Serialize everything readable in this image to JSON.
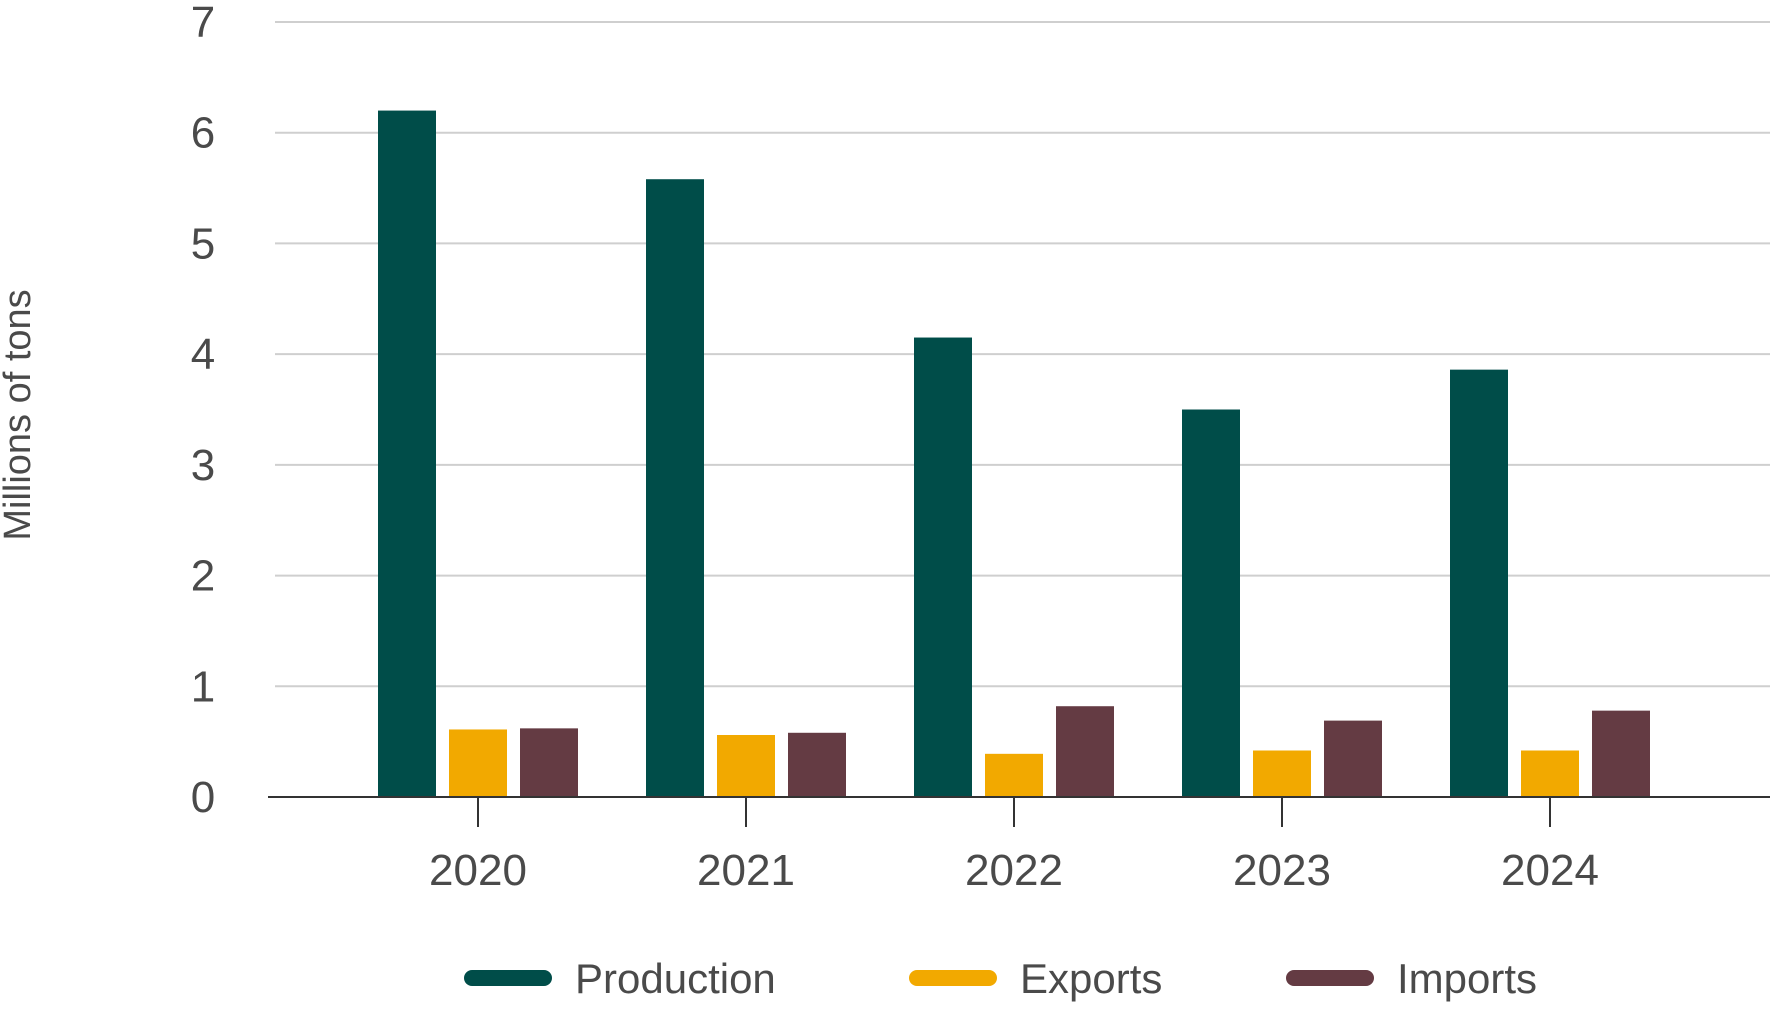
{
  "chart_data": {
    "type": "bar",
    "categories": [
      "2020",
      "2021",
      "2022",
      "2023",
      "2024"
    ],
    "series": [
      {
        "name": "Production",
        "values": [
          6.2,
          5.58,
          4.15,
          3.5,
          3.86
        ],
        "color": "#004d49"
      },
      {
        "name": "Exports",
        "values": [
          0.61,
          0.56,
          0.39,
          0.42,
          0.42
        ],
        "color": "#f2a900"
      },
      {
        "name": "Imports",
        "values": [
          0.62,
          0.58,
          0.82,
          0.69,
          0.78
        ],
        "color": "#643b43"
      }
    ],
    "ylabel": "Millions of tons",
    "ylim": [
      0,
      7
    ],
    "yticks": [
      0,
      1,
      2,
      3,
      4,
      5,
      6,
      7
    ],
    "grid": true,
    "legend": "bottom-center"
  }
}
